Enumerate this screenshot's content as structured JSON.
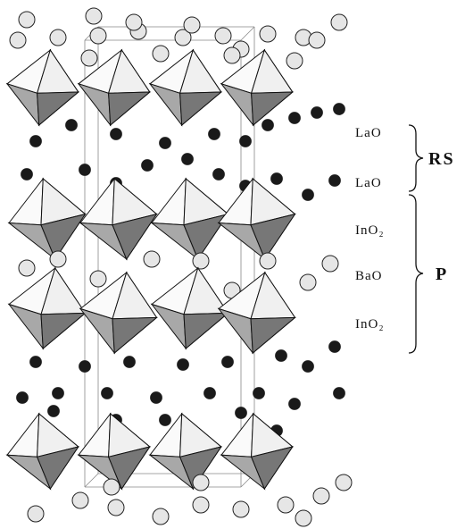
{
  "labels": [
    "LaO",
    "LaO",
    "InO₂",
    "BaO",
    "InO₂"
  ],
  "groups": [
    "RS",
    "P"
  ]
}
